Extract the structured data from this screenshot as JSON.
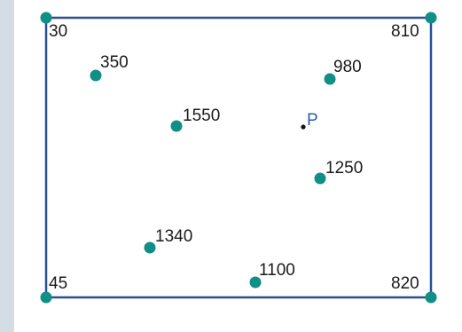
{
  "colors": {
    "background": "#d3dde3",
    "panel": "#ffffff",
    "border": "#2a4f96",
    "dot": "#0f8f86",
    "label": "#1a1a1a",
    "point_p_label": "#2a5db0",
    "point_p_dot": "#111111"
  },
  "corners": [
    {
      "label": "30"
    },
    {
      "label": "810"
    },
    {
      "label": "45"
    },
    {
      "label": "820"
    }
  ],
  "points": [
    {
      "label": "350"
    },
    {
      "label": "980"
    },
    {
      "label": "1550"
    },
    {
      "label": "1250"
    },
    {
      "label": "1340"
    },
    {
      "label": "1100"
    }
  ],
  "target": {
    "label": "P"
  }
}
